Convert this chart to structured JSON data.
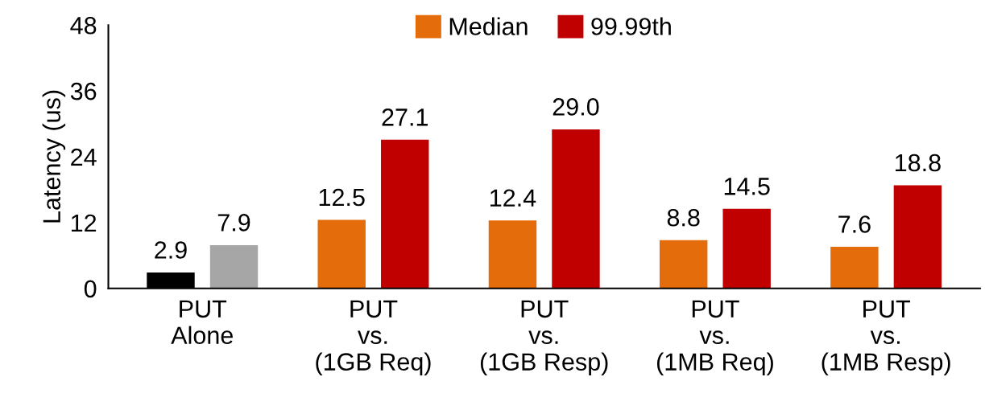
{
  "chart_data": {
    "type": "bar",
    "ylabel": "Latency (us)",
    "categories": [
      "PUT\nAlone",
      "PUT\nvs.\n(1GB Req)",
      "PUT\nvs.\n(1GB Resp)",
      "PUT\nvs.\n(1MB Req)",
      "PUT\nvs.\n(1MB Resp)"
    ],
    "series": [
      {
        "name": "Median",
        "color": "#e46c0a",
        "colors": [
          "#000000",
          "#e46c0a",
          "#e46c0a",
          "#e46c0a",
          "#e46c0a"
        ],
        "values": [
          2.9,
          12.5,
          12.4,
          8.8,
          7.6
        ],
        "value_labels": [
          "2.9",
          "12.5",
          "12.4",
          "8.8",
          "7.6"
        ]
      },
      {
        "name": "99.99th",
        "color": "#c00000",
        "colors": [
          "#a6a6a6",
          "#c00000",
          "#c00000",
          "#c00000",
          "#c00000"
        ],
        "values": [
          7.9,
          27.1,
          29.0,
          14.5,
          18.8
        ],
        "value_labels": [
          "7.9",
          "27.1",
          "29.0",
          "14.5",
          "18.8"
        ]
      }
    ],
    "ylim": [
      0,
      48
    ],
    "yticks": [
      0,
      12,
      24,
      36,
      48
    ],
    "grid": false,
    "legend": "top"
  }
}
